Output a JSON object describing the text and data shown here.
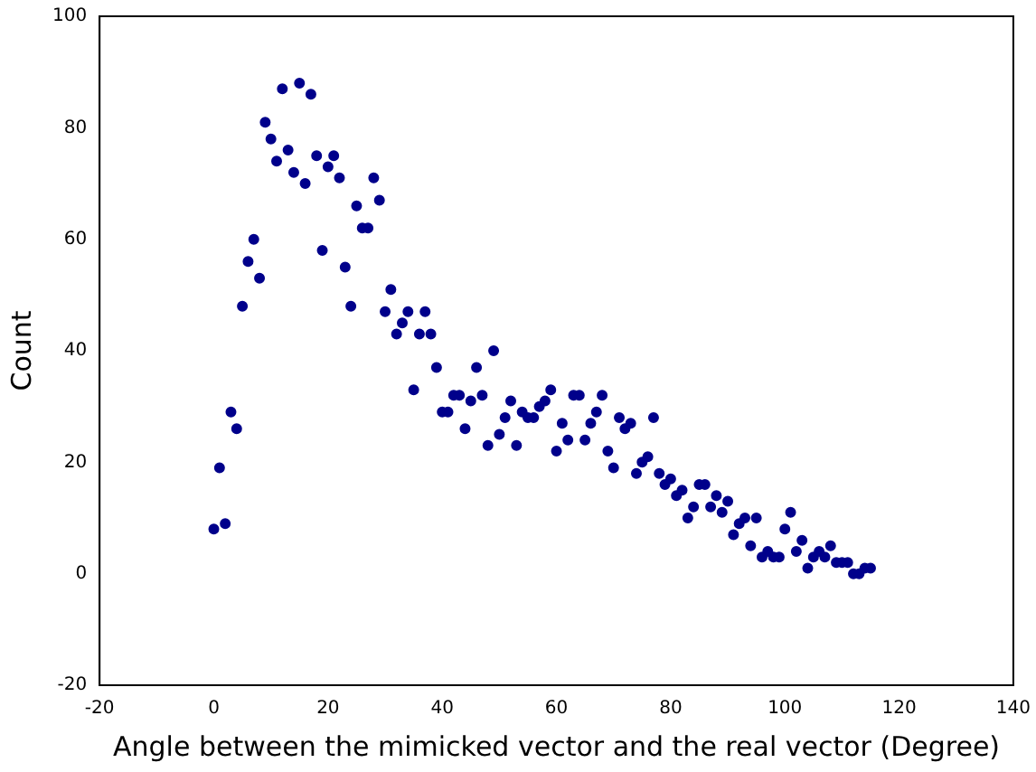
{
  "chart_data": {
    "type": "scatter",
    "xlabel": "Angle between the mimicked vector and the real vector (Degree)",
    "ylabel": "Count",
    "x": [
      0,
      1,
      2,
      3,
      4,
      5,
      6,
      7,
      8,
      9,
      10,
      11,
      12,
      13,
      14,
      15,
      16,
      17,
      18,
      19,
      20,
      21,
      22,
      23,
      24,
      25,
      26,
      27,
      28,
      29,
      30,
      31,
      32,
      33,
      34,
      35,
      36,
      37,
      38,
      39,
      40,
      41,
      42,
      43,
      44,
      45,
      46,
      47,
      48,
      49,
      50,
      51,
      52,
      53,
      54,
      55,
      56,
      57,
      58,
      59,
      60,
      61,
      62,
      63,
      64,
      65,
      66,
      67,
      68,
      69,
      70,
      71,
      72,
      73,
      74,
      75,
      76,
      77,
      78,
      79,
      80,
      81,
      82,
      83,
      84,
      85,
      86,
      87,
      88,
      89,
      90,
      91,
      92,
      93,
      94,
      95,
      96,
      97,
      98,
      99,
      100,
      101,
      102,
      103,
      104,
      105,
      106,
      107,
      108,
      109,
      110,
      111,
      112,
      113,
      114,
      115
    ],
    "values": [
      8,
      19,
      9,
      29,
      26,
      48,
      56,
      60,
      53,
      81,
      78,
      74,
      87,
      76,
      72,
      88,
      70,
      86,
      75,
      58,
      73,
      75,
      71,
      55,
      48,
      66,
      62,
      62,
      71,
      67,
      47,
      51,
      43,
      45,
      47,
      33,
      43,
      47,
      43,
      37,
      29,
      29,
      32,
      32,
      26,
      31,
      37,
      32,
      23,
      40,
      25,
      28,
      31,
      23,
      29,
      28,
      28,
      30,
      31,
      33,
      22,
      27,
      24,
      32,
      32,
      24,
      27,
      29,
      32,
      22,
      19,
      28,
      26,
      27,
      18,
      20,
      21,
      28,
      18,
      16,
      17,
      14,
      15,
      10,
      12,
      16,
      16,
      12,
      14,
      11,
      13,
      7,
      9,
      10,
      5,
      10,
      3,
      4,
      3,
      3,
      8,
      11,
      4,
      6,
      1,
      3,
      4,
      3,
      5,
      2,
      2,
      2,
      0,
      0,
      1,
      1
    ],
    "color": "#00008b",
    "marker": "circle",
    "xlim": [
      -20,
      140
    ],
    "xticks": [
      -20,
      0,
      20,
      40,
      60,
      80,
      100,
      120,
      140
    ],
    "ylim": [
      -20,
      100
    ],
    "yticks": [
      -20,
      0,
      20,
      40,
      60,
      80,
      100
    ],
    "grid": false,
    "legend": false
  }
}
